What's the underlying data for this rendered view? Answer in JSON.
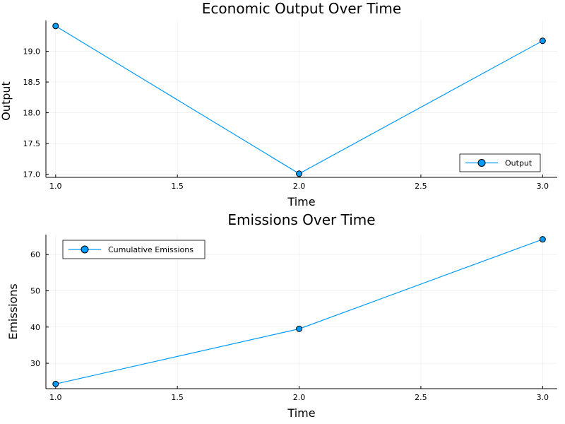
{
  "chart_data": [
    {
      "type": "line",
      "title": "Economic Output Over Time",
      "xlabel": "Time",
      "ylabel": "Output",
      "xlim": [
        0.96,
        3.06
      ],
      "ylim": [
        16.95,
        19.5
      ],
      "xticks": [
        1.0,
        1.5,
        2.0,
        2.5,
        3.0
      ],
      "xtick_labels": [
        "1.0",
        "1.5",
        "2.0",
        "2.5",
        "3.0"
      ],
      "yticks": [
        17.0,
        17.5,
        18.0,
        18.5,
        19.0
      ],
      "ytick_labels": [
        "17.0",
        "17.5",
        "18.0",
        "18.5",
        "19.0"
      ],
      "grid": true,
      "legend_position": "bottom-right",
      "series": [
        {
          "name": "Output",
          "color": "#009AFA",
          "x": [
            1.0,
            2.0,
            3.0
          ],
          "y": [
            19.41,
            17.01,
            19.17
          ]
        }
      ]
    },
    {
      "type": "line",
      "title": "Emissions Over Time",
      "xlabel": "Time",
      "ylabel": "Emissions",
      "xlim": [
        0.96,
        3.06
      ],
      "ylim": [
        23.0,
        65.5
      ],
      "xticks": [
        1.0,
        1.5,
        2.0,
        2.5,
        3.0
      ],
      "xtick_labels": [
        "1.0",
        "1.5",
        "2.0",
        "2.5",
        "3.0"
      ],
      "yticks": [
        30,
        40,
        50,
        60
      ],
      "ytick_labels": [
        "30",
        "40",
        "50",
        "60"
      ],
      "grid": true,
      "legend_position": "top-left",
      "series": [
        {
          "name": "Cumulative Emissions",
          "color": "#009AFA",
          "x": [
            1.0,
            2.0,
            3.0
          ],
          "y": [
            24.3,
            39.5,
            64.2
          ]
        }
      ]
    }
  ]
}
